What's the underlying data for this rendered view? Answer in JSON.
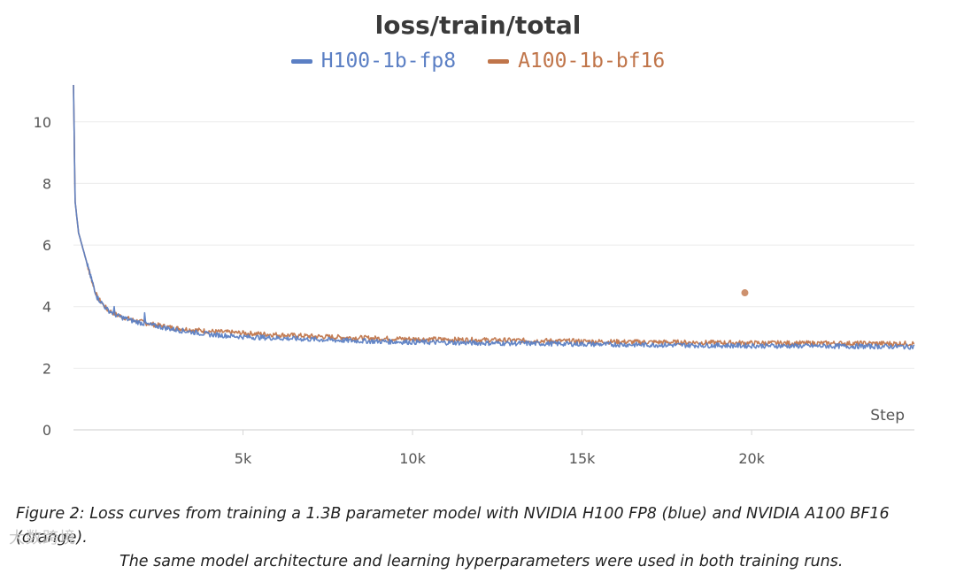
{
  "chart_data": {
    "type": "line",
    "title": "loss/train/total",
    "xlabel": "Step",
    "ylabel": "",
    "xlim": [
      0,
      24800
    ],
    "ylim": [
      0,
      11.2
    ],
    "x_ticks": [
      5000,
      10000,
      15000,
      20000
    ],
    "x_tick_labels": [
      "5k",
      "10k",
      "15k",
      "20k"
    ],
    "y_ticks": [
      0,
      2,
      4,
      6,
      8,
      10
    ],
    "y_tick_labels": [
      "0",
      "2",
      "4",
      "6",
      "8",
      "10"
    ],
    "grid": true,
    "legend_position": "top-center",
    "series": [
      {
        "name": "H100-1b-fp8",
        "color": "#5b7fc4",
        "x": [
          0,
          50,
          150,
          300,
          500,
          700,
          1000,
          1300,
          1700,
          2200,
          3000,
          4000,
          5000,
          6000,
          7000,
          8000,
          9000,
          10000,
          12000,
          14000,
          16000,
          18000,
          20000,
          22000,
          24800
        ],
        "values": [
          11.2,
          7.4,
          6.4,
          5.8,
          5.0,
          4.3,
          3.9,
          3.7,
          3.55,
          3.42,
          3.25,
          3.1,
          3.02,
          2.98,
          2.94,
          2.9,
          2.87,
          2.85,
          2.82,
          2.8,
          2.77,
          2.75,
          2.73,
          2.72,
          2.7
        ],
        "spikes": [
          {
            "x": 1200,
            "y": 4.0
          },
          {
            "x": 2100,
            "y": 3.8
          }
        ]
      },
      {
        "name": "A100-1b-bf16",
        "color": "#c0754a",
        "x": [
          0,
          50,
          150,
          300,
          500,
          700,
          1000,
          1300,
          1700,
          2200,
          3000,
          4000,
          5000,
          6000,
          7000,
          8000,
          9000,
          10000,
          12000,
          14000,
          16000,
          18000,
          20000,
          22000,
          24800
        ],
        "values": [
          11.2,
          7.4,
          6.4,
          5.8,
          5.0,
          4.3,
          3.9,
          3.72,
          3.58,
          3.45,
          3.3,
          3.2,
          3.14,
          3.09,
          3.04,
          3.0,
          2.97,
          2.95,
          2.92,
          2.89,
          2.86,
          2.84,
          2.82,
          2.81,
          2.8
        ],
        "outlier": {
          "x": 19800,
          "y": 4.45
        }
      }
    ]
  },
  "caption": {
    "line1": "Figure 2: Loss curves from training a 1.3B parameter model with NVIDIA H100 FP8 (blue) and NVIDIA A100 BF16 (orange).",
    "line2": "The same model architecture and learning hyperparameters were used in both training runs."
  },
  "watermark": "大数跨境"
}
